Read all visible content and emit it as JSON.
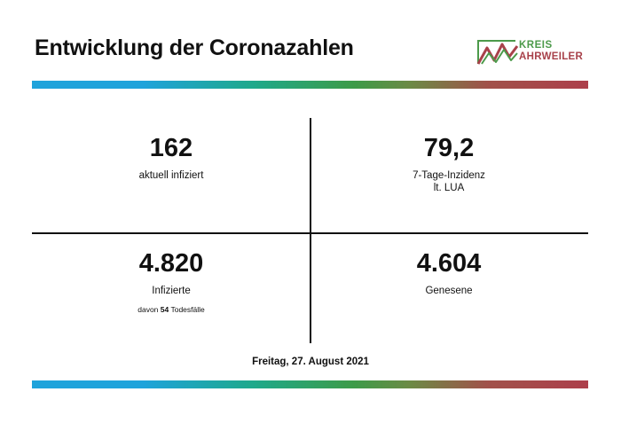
{
  "header": {
    "title": "Entwicklung der Coronazahlen",
    "logo": {
      "line1": "KREIS",
      "line2": "AHRWEILER",
      "color_green": "#4c9a4a",
      "color_red": "#a8414a"
    }
  },
  "stats": {
    "infected_now": {
      "value": "162",
      "label": "aktuell infiziert"
    },
    "incidence": {
      "value": "79,2",
      "label_line1": "7-Tage-Inzidenz",
      "label_line2": "lt. LUA"
    },
    "infected_total": {
      "value": "4.820",
      "label": "Infizierte",
      "deaths_prefix": "davon",
      "deaths_value": "54",
      "deaths_suffix": "Todesfälle"
    },
    "recovered": {
      "value": "4.604",
      "label": "Genesene"
    }
  },
  "footer": {
    "date": "Freitag, 27. August 2021"
  },
  "colors": {
    "bar_start": "#1fa3db",
    "bar_mid": "#3d9b48",
    "bar_end": "#ad3f4b"
  }
}
